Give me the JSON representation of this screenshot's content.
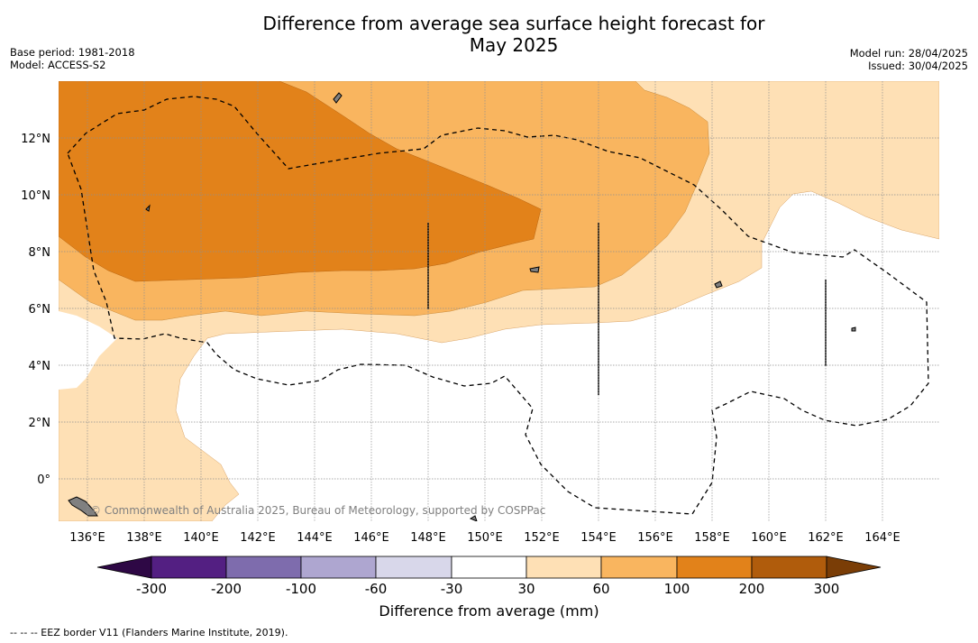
{
  "title": {
    "line1": "Difference from average sea surface height forecast for",
    "line2": "May 2025"
  },
  "meta_left": {
    "base_period": "Base period: 1981-2018",
    "model": "Model: ACCESS-S2"
  },
  "meta_right": {
    "model_run": "Model run: 28/04/2025",
    "issued": "Issued: 30/04/2025"
  },
  "map": {
    "lon_range": [
      135,
      166
    ],
    "lat_range": [
      -1.5,
      14
    ],
    "x_ticks": [
      "136°E",
      "138°E",
      "140°E",
      "142°E",
      "144°E",
      "146°E",
      "148°E",
      "150°E",
      "152°E",
      "154°E",
      "156°E",
      "158°E",
      "160°E",
      "162°E",
      "164°E"
    ],
    "y_ticks": [
      "12°N",
      "10°N",
      "8°N",
      "6°N",
      "4°N",
      "2°N",
      "0°"
    ],
    "credit": "© Commonwealth of Australia 2025, Bureau of Meteorology, supported by COSPPac",
    "grid": true
  },
  "colorbar": {
    "label": "Difference from average (mm)",
    "ticks": [
      "-300",
      "-200",
      "-100",
      "-60",
      "-30",
      "30",
      "60",
      "100",
      "200",
      "300"
    ],
    "colors": [
      "#531f82",
      "#7e6cad",
      "#aea6d0",
      "#d8d7ea",
      "#ffffff",
      "#fee0b5",
      "#f9b55f",
      "#e2821a",
      "#b05c0c"
    ],
    "extend_low_color": "#2e0845",
    "extend_high_color": "#7a3d06"
  },
  "footnote": "--  --  -- EEZ border V11 (Flanders Marine Institute, 2019)."
}
